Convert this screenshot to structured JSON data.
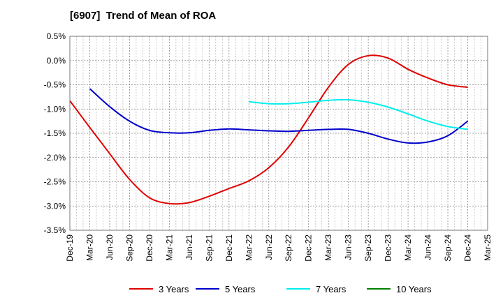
{
  "chart_data": {
    "type": "line",
    "title": "[6907]  Trend of Mean of ROA",
    "xlabel": "",
    "ylabel": "",
    "x": [
      "Dec-19",
      "Mar-20",
      "Jun-20",
      "Sep-20",
      "Dec-20",
      "Mar-21",
      "Jun-21",
      "Sep-21",
      "Dec-21",
      "Mar-22",
      "Jun-22",
      "Sep-22",
      "Dec-22",
      "Mar-23",
      "Jun-23",
      "Sep-23",
      "Dec-23",
      "Mar-24",
      "Jun-24",
      "Sep-24",
      "Dec-24",
      "Mar-25"
    ],
    "y_ticks": [
      "0.5%",
      "0.0%",
      "-0.5%",
      "-1.0%",
      "-1.5%",
      "-2.0%",
      "-2.5%",
      "-3.0%",
      "-3.5%"
    ],
    "ylim": [
      -3.5,
      0.5
    ],
    "grid": true,
    "legend_position": "bottom",
    "series": [
      {
        "name": "3 Years",
        "color": "#e00000",
        "values": [
          -0.83,
          -1.38,
          -1.92,
          -2.45,
          -2.83,
          -2.95,
          -2.93,
          -2.8,
          -2.64,
          -2.48,
          -2.21,
          -1.78,
          -1.18,
          -0.55,
          -0.08,
          0.1,
          0.05,
          -0.18,
          -0.36,
          -0.5,
          -0.55,
          null
        ]
      },
      {
        "name": "5 Years",
        "color": "#0000cc",
        "values": [
          null,
          -0.58,
          -0.95,
          -1.25,
          -1.44,
          -1.49,
          -1.49,
          -1.44,
          -1.41,
          -1.43,
          -1.45,
          -1.46,
          -1.44,
          -1.42,
          -1.42,
          -1.5,
          -1.62,
          -1.7,
          -1.68,
          -1.55,
          -1.25,
          null
        ]
      },
      {
        "name": "7 Years",
        "color": "#00eeee",
        "values": [
          null,
          null,
          null,
          null,
          null,
          null,
          null,
          null,
          null,
          -0.85,
          -0.89,
          -0.89,
          -0.86,
          -0.82,
          -0.81,
          -0.86,
          -0.96,
          -1.1,
          -1.25,
          -1.36,
          -1.42,
          null
        ]
      },
      {
        "name": "10 Years",
        "color": "#008000",
        "values": [
          null,
          null,
          null,
          null,
          null,
          null,
          null,
          null,
          null,
          null,
          null,
          null,
          null,
          null,
          null,
          null,
          null,
          null,
          null,
          null,
          null,
          null
        ]
      }
    ]
  }
}
